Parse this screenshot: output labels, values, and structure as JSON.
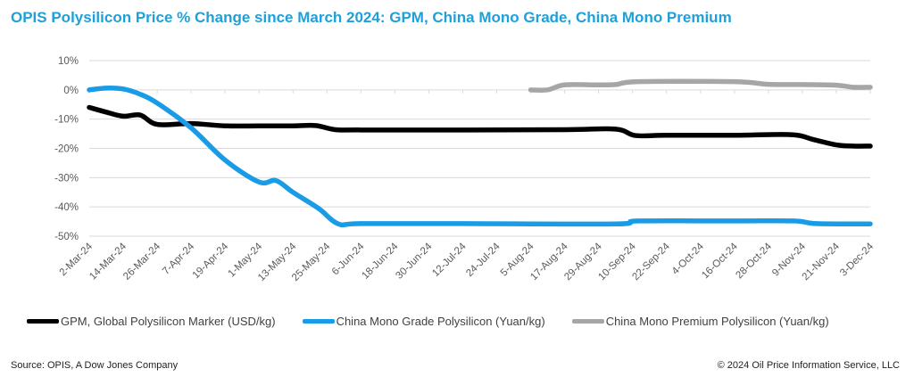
{
  "chart_data": {
    "type": "line",
    "title": "OPIS Polysilicon Price %  Change since March 2024: GPM, China Mono Grade, China Mono Premium",
    "ylim": [
      -50,
      10
    ],
    "yticks": [
      "10%",
      "0%",
      "-10%",
      "-20%",
      "-30%",
      "-40%",
      "-50%"
    ],
    "ytick_values": [
      10,
      0,
      -10,
      -20,
      -30,
      -40,
      -50
    ],
    "xticks": [
      "2-Mar-24",
      "14-Mar-24",
      "26-Mar-24",
      "7-Apr-24",
      "19-Apr-24",
      "1-May-24",
      "13-May-24",
      "25-May-24",
      "6-Jun-24",
      "18-Jun-24",
      "30-Jun-24",
      "12-Jul-24",
      "24-Jul-24",
      "5-Aug-24",
      "17-Aug-24",
      "29-Aug-24",
      "10-Sep-24",
      "22-Sep-24",
      "4-Oct-24",
      "16-Oct-24",
      "28-Oct-24",
      "9-Nov-24",
      "21-Nov-24",
      "3-Dec-24"
    ],
    "xlim": [
      "2024-03-02",
      "2024-12-03"
    ],
    "grid": true,
    "legend": "bottom",
    "series": [
      {
        "name": "GPM, Global Polysilicon Marker (USD/kg)",
        "color": "#000000",
        "points": [
          [
            "2024-03-02",
            -6
          ],
          [
            "2024-03-08",
            -7.6
          ],
          [
            "2024-03-14",
            -9
          ],
          [
            "2024-03-20",
            -8.6
          ],
          [
            "2024-03-26",
            -11.8
          ],
          [
            "2024-04-07",
            -11.5
          ],
          [
            "2024-04-19",
            -12.3
          ],
          [
            "2024-05-01",
            -12.3
          ],
          [
            "2024-05-13",
            -12.3
          ],
          [
            "2024-05-21",
            -12.2
          ],
          [
            "2024-05-28",
            -13.6
          ],
          [
            "2024-06-06",
            -13.7
          ],
          [
            "2024-07-12",
            -13.7
          ],
          [
            "2024-08-17",
            -13.6
          ],
          [
            "2024-09-04",
            -13.4
          ],
          [
            "2024-09-11",
            -15.6
          ],
          [
            "2024-09-22",
            -15.5
          ],
          [
            "2024-10-16",
            -15.5
          ],
          [
            "2024-11-05",
            -15.3
          ],
          [
            "2024-11-13",
            -17
          ],
          [
            "2024-11-21",
            -18.8
          ],
          [
            "2024-11-27",
            -19.2
          ],
          [
            "2024-12-03",
            -19.2
          ]
        ]
      },
      {
        "name": "China Mono Grade Polysilicon (Yuan/kg)",
        "color": "#1a9be6",
        "points": [
          [
            "2024-03-02",
            0
          ],
          [
            "2024-03-08",
            0.6
          ],
          [
            "2024-03-14",
            0.3
          ],
          [
            "2024-03-20",
            -1.5
          ],
          [
            "2024-03-26",
            -4.5
          ],
          [
            "2024-04-07",
            -13
          ],
          [
            "2024-04-19",
            -24
          ],
          [
            "2024-05-01",
            -31.5
          ],
          [
            "2024-05-07",
            -31
          ],
          [
            "2024-05-13",
            -35
          ],
          [
            "2024-05-22",
            -40.5
          ],
          [
            "2024-05-29",
            -45.8
          ],
          [
            "2024-06-06",
            -45.7
          ],
          [
            "2024-07-12",
            -45.7
          ],
          [
            "2024-09-04",
            -45.8
          ],
          [
            "2024-09-12",
            -44.8
          ],
          [
            "2024-10-16",
            -44.8
          ],
          [
            "2024-11-06",
            -44.8
          ],
          [
            "2024-11-14",
            -45.7
          ],
          [
            "2024-12-03",
            -45.8
          ]
        ]
      },
      {
        "name": "China Mono Premium Polysilicon (Yuan/kg)",
        "color": "#a6a6a6",
        "points": [
          [
            "2024-08-05",
            0
          ],
          [
            "2024-08-11",
            0
          ],
          [
            "2024-08-17",
            1.7
          ],
          [
            "2024-08-29",
            1.7
          ],
          [
            "2024-09-04",
            1.8
          ],
          [
            "2024-09-12",
            2.8
          ],
          [
            "2024-10-16",
            2.8
          ],
          [
            "2024-10-28",
            1.9
          ],
          [
            "2024-11-09",
            1.8
          ],
          [
            "2024-11-21",
            1.6
          ],
          [
            "2024-11-27",
            0.9
          ],
          [
            "2024-12-03",
            0.9
          ]
        ]
      }
    ]
  },
  "footer": {
    "source": "Source: OPIS, A Dow Jones Company",
    "copyright": "© 2024 Oil Price Information Service, LLC"
  }
}
